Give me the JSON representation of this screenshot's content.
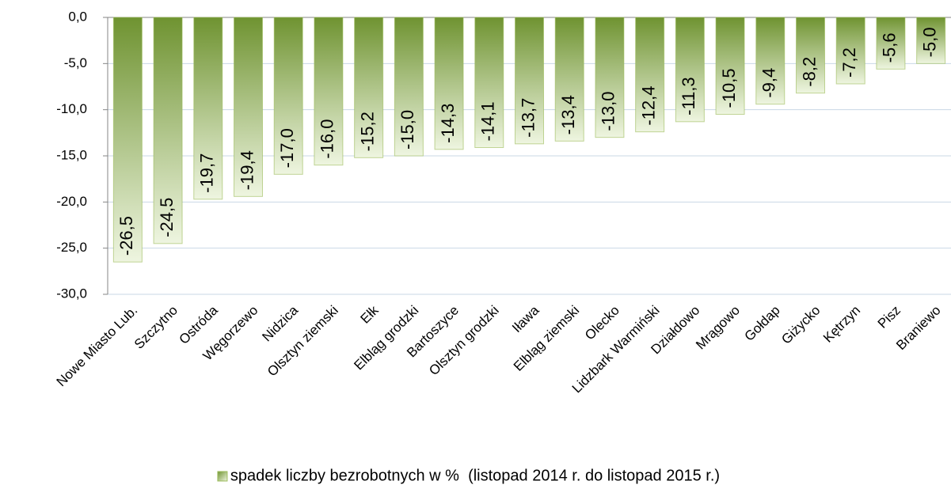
{
  "chart_data": {
    "type": "bar",
    "categories": [
      "Nowe Miasto Lub.",
      "Szczytno",
      "Ostróda",
      "Węgorzewo",
      "Nidzica",
      "Olsztyn ziemski",
      "Ełk",
      "Elbląg grodzki",
      "Bartoszyce",
      "Olsztyn grodzki",
      "Iława",
      "Elbląg ziemski",
      "Olecko",
      "Lidzbark Warmiński",
      "Działdowo",
      "Mrągowo",
      "Gołdap",
      "Giżycko",
      "Kętrzyn",
      "Pisz",
      "Braniewo"
    ],
    "series": [
      {
        "name": "spadek liczby bezrobotnych w %  (listopad 2014 r. do listopad 2015 r.)",
        "color": "#9bbb59",
        "values": [
          -26.5,
          -24.5,
          -19.7,
          -19.4,
          -17.0,
          -16.0,
          -15.2,
          -15.0,
          -14.3,
          -14.1,
          -13.7,
          -13.4,
          -13.0,
          -12.4,
          -11.3,
          -10.5,
          -9.4,
          -8.2,
          -7.2,
          -5.6,
          -5.0
        ],
        "value_labels": [
          "-26,5",
          "-24,5",
          "-19,7",
          "-19,4",
          "-17,0",
          "-16,0",
          "-15,2",
          "-15,0",
          "-14,3",
          "-14,1",
          "-13,7",
          "-13,4",
          "-13,0",
          "-12,4",
          "-11,3",
          "-10,5",
          "-9,4",
          "-8,2",
          "-7,2",
          "-5,6",
          "-5,0"
        ]
      }
    ],
    "ylim": [
      -30,
      0
    ],
    "yticks": [
      {
        "value": 0,
        "label": "0,0"
      },
      {
        "value": -5,
        "label": "-5,0"
      },
      {
        "value": -10,
        "label": "-10,0"
      },
      {
        "value": -15,
        "label": "-15,0"
      },
      {
        "value": -20,
        "label": "-20,0"
      },
      {
        "value": -25,
        "label": "-25,0"
      },
      {
        "value": -30,
        "label": "-30,0"
      }
    ],
    "grid": true,
    "legend": "bottom"
  }
}
